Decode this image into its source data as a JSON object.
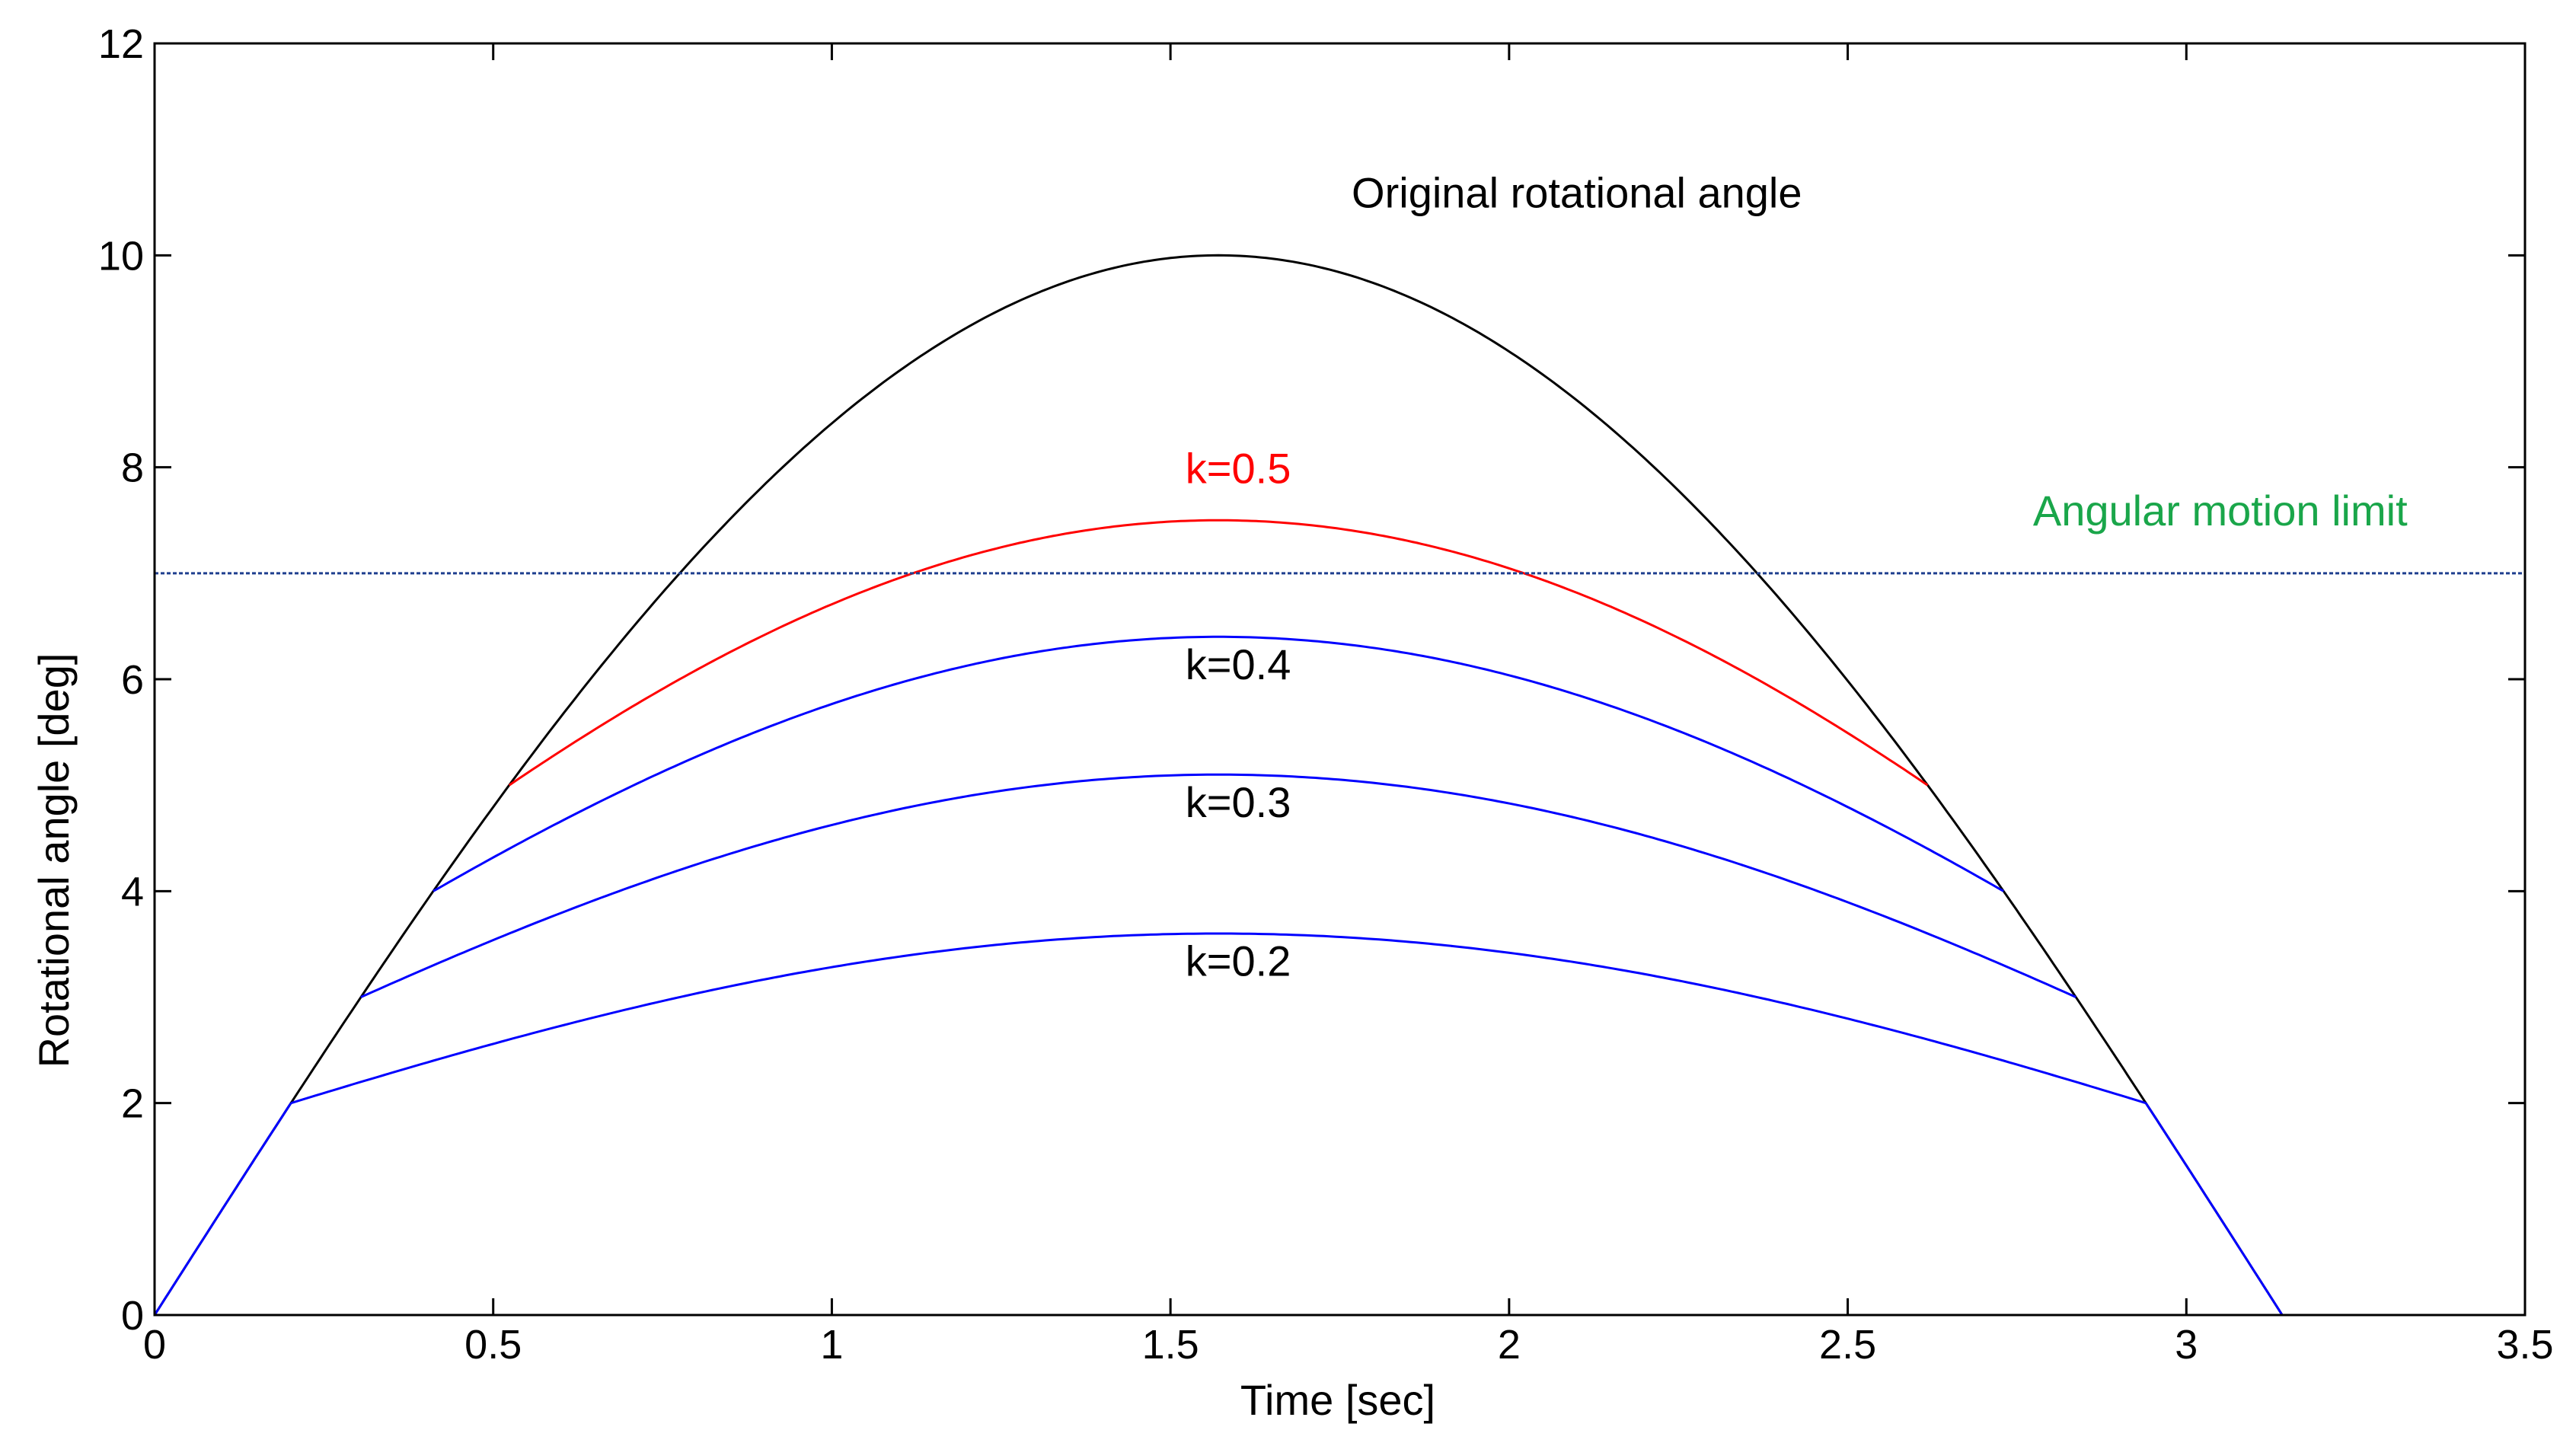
{
  "chart_data": {
    "type": "line",
    "title": "",
    "xlabel": "Time [sec]",
    "ylabel": "Rotational angle [deg]",
    "xlim": [
      0,
      3.5
    ],
    "ylim": [
      0,
      12
    ],
    "xticks": [
      0,
      0.5,
      1,
      1.5,
      2,
      2.5,
      3,
      3.5
    ],
    "xtick_labels": [
      "0",
      "0.5",
      "1",
      "1.5",
      "2",
      "2.5",
      "3",
      "3.5"
    ],
    "yticks": [
      0,
      2,
      4,
      6,
      8,
      10,
      12
    ],
    "ytick_labels": [
      "0",
      "2",
      "4",
      "6",
      "8",
      "10",
      "12"
    ],
    "grid": false,
    "original": {
      "name": "Original rotational angle",
      "color": "#000000",
      "amplitude": 10,
      "t_end": 3.1416,
      "formula": "10*sin(t)"
    },
    "limit": {
      "name": "Angular motion limit",
      "value": 7,
      "line_color": "#1f3f8f",
      "label_color": "#1aa64a"
    },
    "series": [
      {
        "name": "k=0.5",
        "k": 0.5,
        "color": "#ff0000",
        "label_color": "#ff0000",
        "peak": 7.5
      },
      {
        "name": "k=0.4",
        "k": 0.4,
        "color": "#0000ff",
        "label_color": "#000000",
        "peak": 6.4
      },
      {
        "name": "k=0.3",
        "k": 0.3,
        "color": "#0000ff",
        "label_color": "#000000",
        "peak": 5.1
      },
      {
        "name": "k=0.2",
        "k": 0.2,
        "color": "#0000ff",
        "label_color": "#000000",
        "peak": 3.6
      }
    ],
    "annotations": [
      {
        "text": "Original rotational angle",
        "x": 2.1,
        "y": 10.45,
        "color": "#000000"
      },
      {
        "text": "k=0.5",
        "x": 1.6,
        "y": 7.85,
        "color": "#ff0000"
      },
      {
        "text": "Angular motion limit",
        "x": 3.05,
        "y": 7.45,
        "color": "#1aa64a"
      },
      {
        "text": "k=0.4",
        "x": 1.6,
        "y": 6.0,
        "color": "#000000"
      },
      {
        "text": "k=0.3",
        "x": 1.6,
        "y": 4.7,
        "color": "#000000"
      },
      {
        "text": "k=0.2",
        "x": 1.6,
        "y": 3.2,
        "color": "#000000"
      }
    ]
  }
}
